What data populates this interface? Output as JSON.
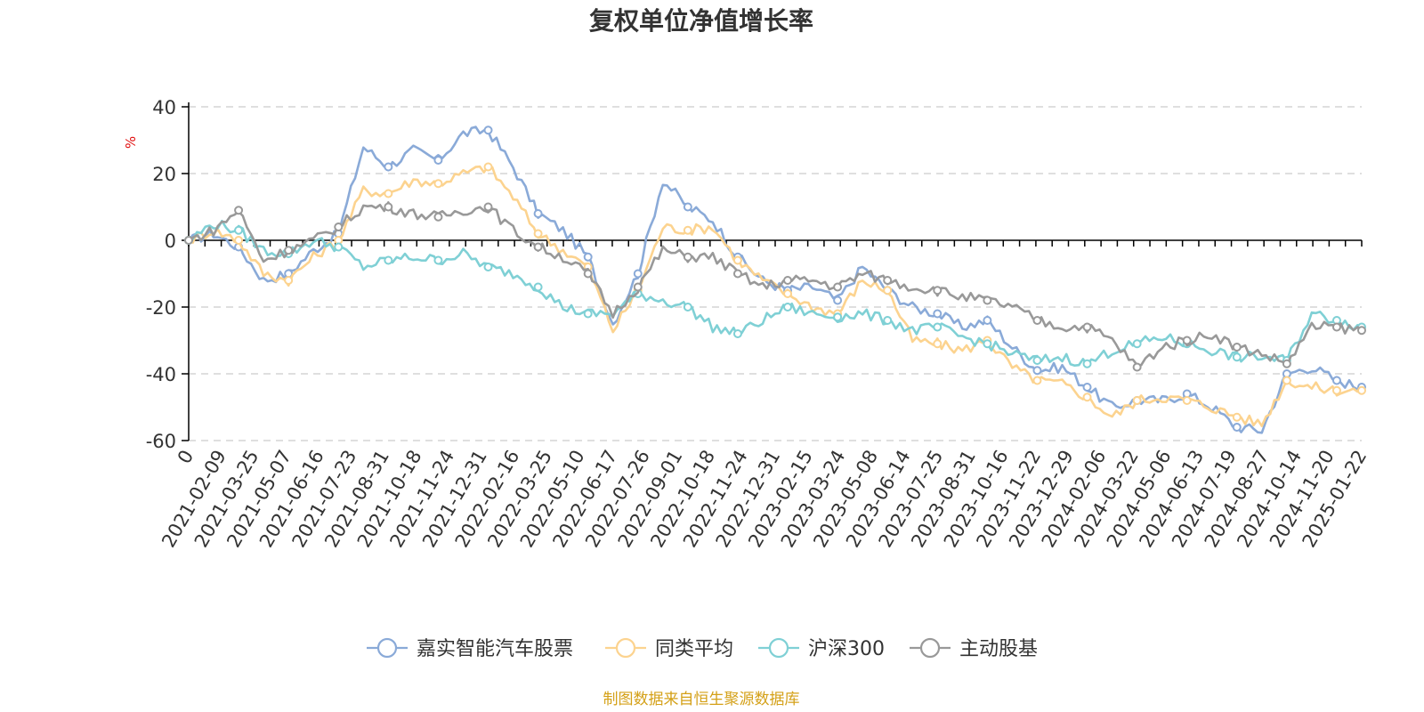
{
  "chart_data": {
    "type": "line",
    "title": "复权单位净值增长率",
    "ylabel": "%",
    "xlabel": "",
    "ylim": [
      -60,
      40
    ],
    "yticks": [
      40,
      20,
      0,
      -20,
      -40,
      -60
    ],
    "x_tick_labels": [
      "0",
      "2021-02-09",
      "2021-03-25",
      "2021-05-07",
      "2021-06-16",
      "2021-07-23",
      "2021-08-31",
      "2021-10-18",
      "2021-11-24",
      "2021-12-31",
      "2022-02-16",
      "2022-03-25",
      "2022-05-10",
      "2022-06-17",
      "2022-07-26",
      "2022-09-01",
      "2022-10-18",
      "2022-11-24",
      "2022-12-31",
      "2023-02-15",
      "2023-03-24",
      "2023-05-08",
      "2023-06-14",
      "2023-07-25",
      "2023-08-31",
      "2023-10-16",
      "2023-11-22",
      "2023-12-29",
      "2024-02-06",
      "2024-03-22",
      "2024-05-06",
      "2024-06-13",
      "2024-07-19",
      "2024-08-27",
      "2024-10-14",
      "2024-11-20",
      "2025-01-22"
    ],
    "legend_position": "bottom",
    "grid": true,
    "series": [
      {
        "name": "嘉实智能汽车股票",
        "color": "#8aaad8",
        "values": [
          0,
          2,
          -2,
          -12,
          -10,
          -3,
          2,
          28,
          22,
          27,
          24,
          32,
          33,
          22,
          8,
          3,
          -5,
          -25,
          -10,
          18,
          10,
          6,
          -5,
          -12,
          -15,
          -14,
          -18,
          -8,
          -15,
          -20,
          -22,
          -26,
          -24,
          -32,
          -39,
          -38,
          -44,
          -50,
          -48,
          -48,
          -46,
          -50,
          -56,
          -57,
          -40,
          -38,
          -42,
          -44
        ]
      },
      {
        "name": "同类平均",
        "color": "#fcd38f",
        "values": [
          0,
          3,
          0,
          -10,
          -12,
          -5,
          0,
          15,
          14,
          18,
          17,
          20,
          22,
          13,
          2,
          -3,
          -8,
          -27,
          -15,
          4,
          3,
          4,
          -6,
          -12,
          -16,
          -20,
          -22,
          -12,
          -15,
          -30,
          -31,
          -33,
          -30,
          -38,
          -42,
          -43,
          -47,
          -53,
          -48,
          -47,
          -48,
          -50,
          -53,
          -55,
          -42,
          -44,
          -45,
          -45
        ]
      },
      {
        "name": "沪深300",
        "color": "#7fd0d5",
        "values": [
          0,
          5,
          3,
          -3,
          -4,
          0,
          -2,
          -8,
          -6,
          -5,
          -6,
          -4,
          -8,
          -10,
          -14,
          -20,
          -22,
          -22,
          -16,
          -18,
          -20,
          -26,
          -28,
          -24,
          -20,
          -22,
          -23,
          -22,
          -24,
          -27,
          -26,
          -29,
          -31,
          -34,
          -36,
          -35,
          -37,
          -33,
          -31,
          -29,
          -31,
          -33,
          -35,
          -35,
          -36,
          -22,
          -24,
          -26
        ]
      },
      {
        "name": "主动股基",
        "color": "#999999",
        "values": [
          0,
          3,
          9,
          -6,
          -3,
          0,
          4,
          10,
          10,
          8,
          7,
          9,
          10,
          3,
          -2,
          -5,
          -10,
          -22,
          -14,
          -3,
          -5,
          -5,
          -10,
          -14,
          -12,
          -12,
          -14,
          -10,
          -12,
          -14,
          -15,
          -17,
          -18,
          -20,
          -24,
          -26,
          -26,
          -30,
          -38,
          -32,
          -30,
          -28,
          -32,
          -34,
          -37,
          -26,
          -26,
          -27
        ]
      }
    ]
  },
  "legend": {
    "items": [
      "嘉实智能汽车股票",
      "同类平均",
      "沪深300",
      "主动股基"
    ]
  },
  "source_note": "制图数据来自恒生聚源数据库"
}
